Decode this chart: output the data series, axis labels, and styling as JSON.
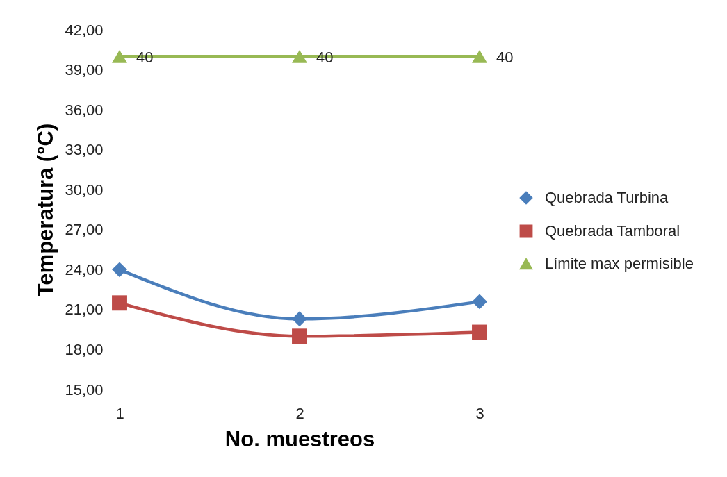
{
  "chart_data": {
    "type": "line",
    "xlabel": "No. muestreos",
    "ylabel": "Temperatura (°C)",
    "categories": [
      "1",
      "2",
      "3"
    ],
    "ylim": [
      15,
      42
    ],
    "yticks": [
      {
        "value": 15,
        "label": "15,00"
      },
      {
        "value": 18,
        "label": "18,00"
      },
      {
        "value": 21,
        "label": "21,00"
      },
      {
        "value": 24,
        "label": "24,00"
      },
      {
        "value": 27,
        "label": "27,00"
      },
      {
        "value": 30,
        "label": "30,00"
      },
      {
        "value": 33,
        "label": "33,00"
      },
      {
        "value": 36,
        "label": "36,00"
      },
      {
        "value": 39,
        "label": "39,00"
      },
      {
        "value": 42,
        "label": "42,00"
      }
    ],
    "grid": false,
    "legend": "right",
    "line_style": "solid",
    "series": [
      {
        "name": "Quebrada Turbina",
        "color": "#4a7ebb",
        "marker": "diamond",
        "values": [
          24.0,
          20.3,
          21.6
        ]
      },
      {
        "name": "Quebrada Tamboral",
        "color": "#be4b48",
        "marker": "square",
        "values": [
          21.5,
          19.0,
          19.3
        ]
      },
      {
        "name": "Límite max permisible",
        "color": "#98b954",
        "marker": "triangle",
        "values": [
          40,
          40,
          40
        ],
        "value_labels": [
          "40",
          "40",
          "40"
        ]
      }
    ]
  }
}
